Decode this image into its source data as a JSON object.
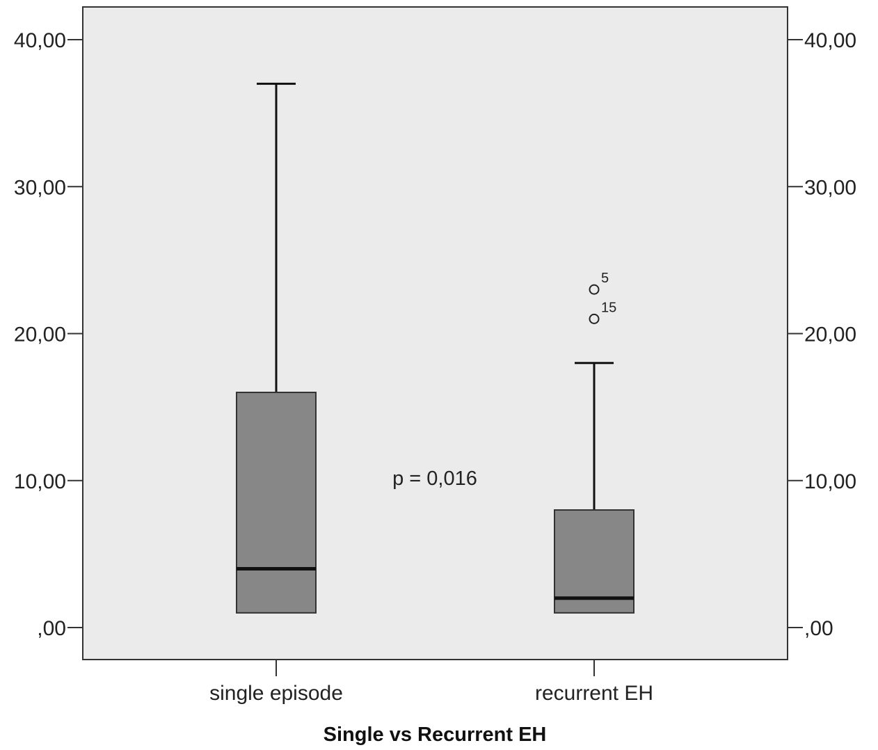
{
  "chart_data": {
    "type": "boxplot",
    "xlabel": "Single vs Recurrent EH",
    "ylabel": "",
    "ylim": [
      -2.2,
      42.5
    ],
    "y_ticks": [
      {
        "value": 0,
        "label": ",00"
      },
      {
        "value": 10,
        "label": "10,00"
      },
      {
        "value": 20,
        "label": "20,00"
      },
      {
        "value": 30,
        "label": "30,00"
      },
      {
        "value": 40,
        "label": "40,00"
      }
    ],
    "secondary_y_axis": true,
    "grid": false,
    "categories": [
      "single episode",
      "recurrent EH"
    ],
    "boxes": [
      {
        "category": "single episode",
        "min": 1,
        "q1": 1,
        "median": 4,
        "q3": 16,
        "max": 37,
        "outliers": []
      },
      {
        "category": "recurrent EH",
        "min": 1,
        "q1": 1,
        "median": 2,
        "q3": 8,
        "max": 18,
        "outliers": [
          {
            "value": 23,
            "label": "5"
          },
          {
            "value": 21,
            "label": "15"
          }
        ]
      }
    ],
    "annotation": "p = 0,016",
    "colors": {
      "plot_background": "#ebebeb",
      "box_fill": "#878787",
      "line": "#111111"
    }
  }
}
